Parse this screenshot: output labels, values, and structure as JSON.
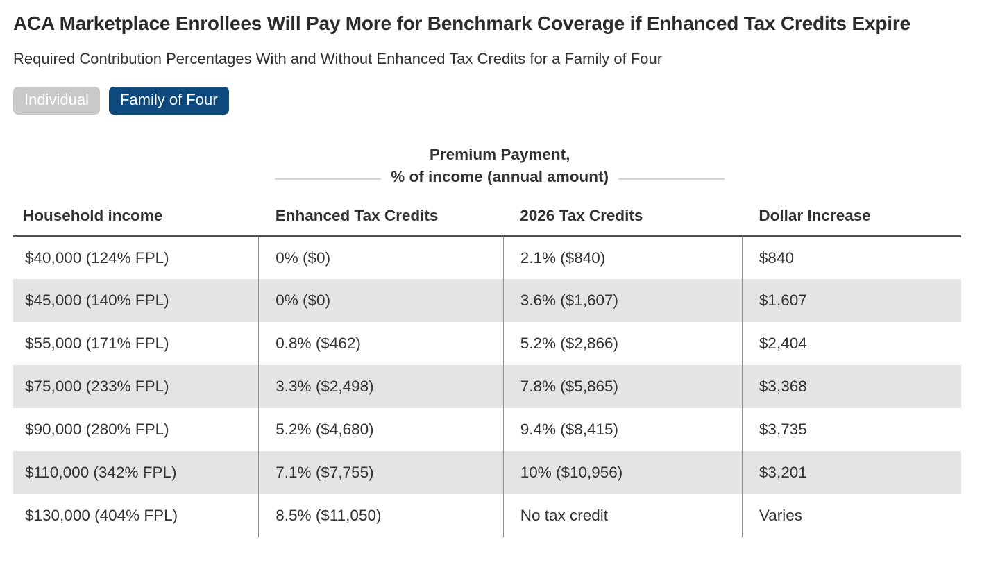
{
  "chart_data": {
    "type": "table",
    "title": "ACA Marketplace Enrollees Will Pay More for Benchmark Coverage if Enhanced Tax Credits Expire",
    "subtitle": "Required Contribution Percentages With and Without Enhanced Tax Credits for a Family of Four",
    "column_group": {
      "line1": "Premium Payment,",
      "line2": "% of income (annual amount)",
      "spans": "Enhanced Tax Credits and 2026 Tax Credits columns"
    },
    "columns": [
      "Household income",
      "Enhanced Tax Credits",
      "2026 Tax Credits",
      "Dollar Increase"
    ],
    "rows": [
      [
        "$40,000 (124% FPL)",
        "0% ($0)",
        "2.1% ($840)",
        "$840"
      ],
      [
        "$45,000 (140% FPL)",
        "0% ($0)",
        "3.6% ($1,607)",
        "$1,607"
      ],
      [
        "$55,000 (171% FPL)",
        "0.8% ($462)",
        "5.2% ($2,866)",
        "$2,404"
      ],
      [
        "$75,000 (233% FPL)",
        "3.3% ($2,498)",
        "7.8% ($5,865)",
        "$3,368"
      ],
      [
        "$90,000 (280% FPL)",
        "5.2% ($4,680)",
        "9.4% ($8,415)",
        "$3,735"
      ],
      [
        "$110,000 (342% FPL)",
        "7.1% ($7,755)",
        "10% ($10,956)",
        "$3,201"
      ],
      [
        "$130,000 (404% FPL)",
        "8.5% ($11,050)",
        "No tax credit",
        "Varies"
      ]
    ]
  },
  "toggle": {
    "individual_label": "Individual",
    "family_of_four_label": "Family of Four",
    "active": "Family of Four"
  },
  "colors": {
    "active_button_blue": "#0e497d",
    "inactive_button_gray": "#c9c9c9",
    "row_stripe_gray": "#e4e4e4",
    "header_rule_dark": "#4d4d4d",
    "column_divider_gray": "#8f8f8f",
    "text_dark": "#333333"
  }
}
